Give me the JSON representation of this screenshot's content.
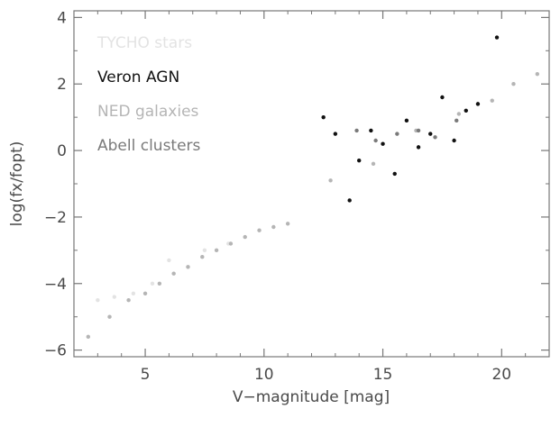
{
  "chart_data": {
    "type": "scatter",
    "title": "",
    "xlabel": "V−magnitude [mag]",
    "ylabel": "log(fx/fopt)",
    "xlim": [
      2,
      22
    ],
    "ylim": [
      -6.2,
      4.2
    ],
    "xticks": [
      5,
      10,
      15,
      20
    ],
    "xtick_labels": [
      "5",
      "10",
      "15",
      "20"
    ],
    "yticks": [
      -6,
      -4,
      -2,
      0,
      2,
      4
    ],
    "ytick_labels": [
      "−6",
      "−4",
      "−2",
      "0",
      "2",
      "4"
    ],
    "grid": false,
    "legend_position": "top-left",
    "series": [
      {
        "name": "TYCHO stars",
        "color": "#e3e3e3",
        "values": [
          [
            3.0,
            -4.5
          ],
          [
            3.7,
            -4.4
          ],
          [
            4.5,
            -4.3
          ],
          [
            5.3,
            -4.0
          ],
          [
            6.0,
            -3.3
          ],
          [
            6.8,
            -3.5
          ],
          [
            7.5,
            -3.0
          ],
          [
            8.5,
            -2.8
          ]
        ]
      },
      {
        "name": "Veron AGN",
        "color": "#111111",
        "values": [
          [
            12.5,
            1.0
          ],
          [
            13.0,
            0.5
          ],
          [
            13.6,
            -1.5
          ],
          [
            14.0,
            -0.3
          ],
          [
            14.5,
            0.6
          ],
          [
            15.0,
            0.2
          ],
          [
            15.5,
            -0.7
          ],
          [
            16.0,
            0.9
          ],
          [
            16.5,
            0.1
          ],
          [
            17.0,
            0.5
          ],
          [
            17.5,
            1.6
          ],
          [
            18.0,
            0.3
          ],
          [
            18.5,
            1.2
          ],
          [
            19.0,
            1.4
          ],
          [
            19.8,
            3.4
          ]
        ]
      },
      {
        "name": "NED galaxies",
        "color": "#b5b5b5",
        "values": [
          [
            2.6,
            -5.6
          ],
          [
            3.5,
            -5.0
          ],
          [
            4.3,
            -4.5
          ],
          [
            5.0,
            -4.3
          ],
          [
            5.6,
            -4.0
          ],
          [
            6.2,
            -3.7
          ],
          [
            6.8,
            -3.5
          ],
          [
            7.4,
            -3.2
          ],
          [
            8.0,
            -3.0
          ],
          [
            8.6,
            -2.8
          ],
          [
            9.2,
            -2.6
          ],
          [
            9.8,
            -2.4
          ],
          [
            10.4,
            -2.3
          ],
          [
            11.0,
            -2.2
          ],
          [
            12.8,
            -0.9
          ],
          [
            14.6,
            -0.4
          ],
          [
            16.4,
            0.6
          ],
          [
            18.2,
            1.1
          ],
          [
            19.6,
            1.5
          ],
          [
            20.5,
            2.0
          ],
          [
            21.5,
            2.3
          ]
        ]
      },
      {
        "name": "Abell clusters",
        "color": "#7a7a7a",
        "values": [
          [
            13.9,
            0.6
          ],
          [
            14.7,
            0.3
          ],
          [
            15.6,
            0.5
          ],
          [
            16.5,
            0.6
          ],
          [
            17.2,
            0.4
          ],
          [
            18.1,
            0.9
          ]
        ]
      }
    ]
  }
}
